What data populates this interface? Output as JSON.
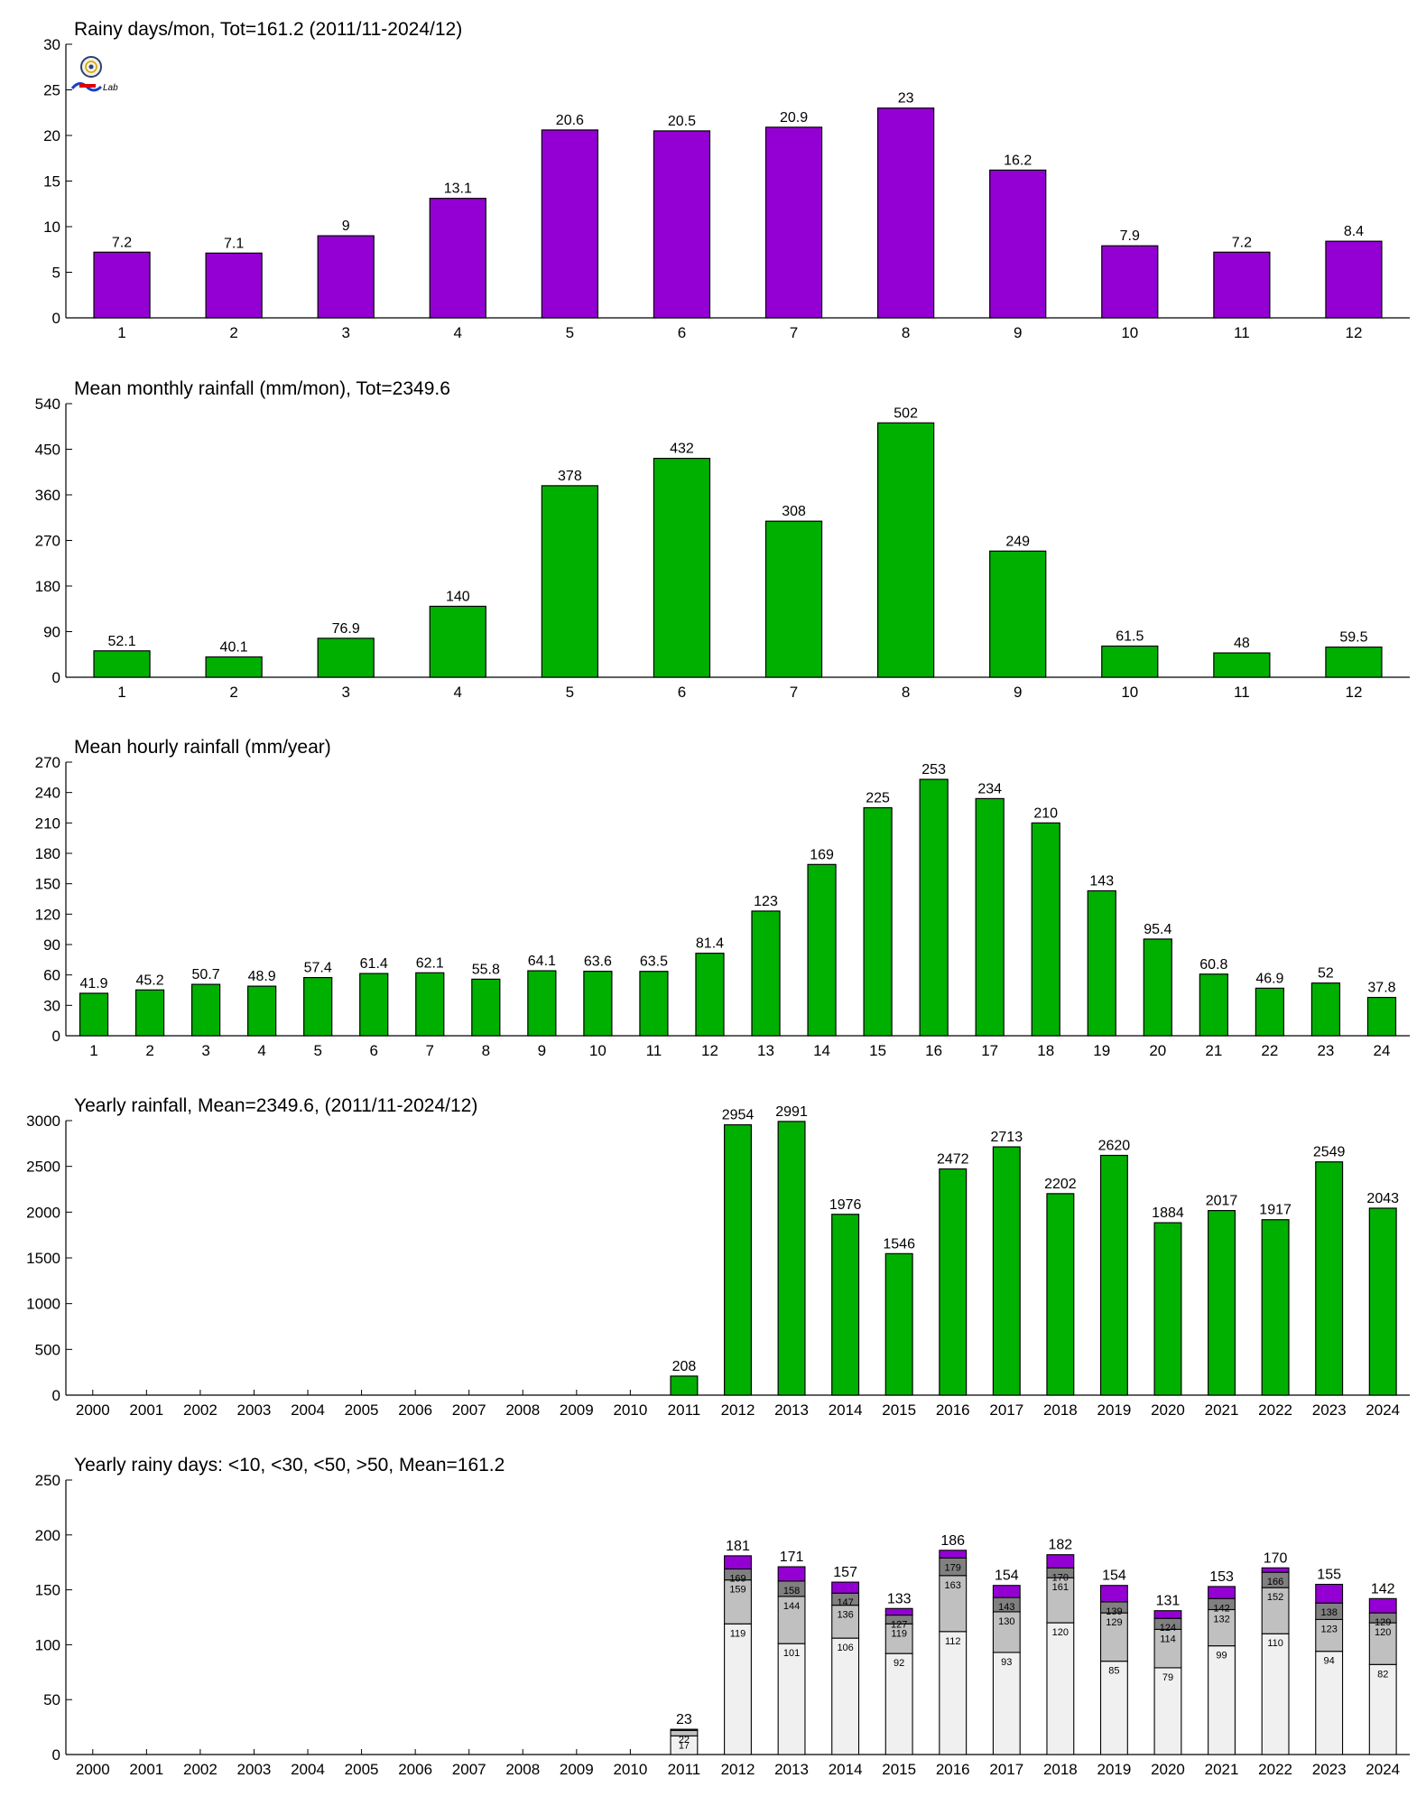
{
  "logo": {
    "text": "Lab"
  },
  "chart_data": [
    {
      "type": "bar",
      "title": "Rainy days/mon, Tot=161.2 (2011/11-2024/12)",
      "color": "#9400D3",
      "categories": [
        "1",
        "2",
        "3",
        "4",
        "5",
        "6",
        "7",
        "8",
        "9",
        "10",
        "11",
        "12"
      ],
      "values": [
        7.2,
        7.1,
        9,
        13.1,
        20.6,
        20.5,
        20.9,
        23,
        16.2,
        7.9,
        7.2,
        8.4
      ],
      "ylim": [
        0,
        30
      ],
      "yticks": [
        0,
        5,
        10,
        15,
        20,
        25,
        30
      ]
    },
    {
      "type": "bar",
      "title": "Mean monthly rainfall (mm/mon), Tot=2349.6",
      "color": "#00B000",
      "categories": [
        "1",
        "2",
        "3",
        "4",
        "5",
        "6",
        "7",
        "8",
        "9",
        "10",
        "11",
        "12"
      ],
      "values": [
        52.1,
        40.1,
        76.9,
        140,
        378,
        432,
        308,
        502,
        249,
        61.5,
        48,
        59.5
      ],
      "ylim": [
        0,
        540
      ],
      "yticks": [
        0,
        90,
        180,
        270,
        360,
        450,
        540
      ]
    },
    {
      "type": "bar",
      "title": "Mean hourly rainfall (mm/year)",
      "color": "#00B000",
      "categories": [
        "1",
        "2",
        "3",
        "4",
        "5",
        "6",
        "7",
        "8",
        "9",
        "10",
        "11",
        "12",
        "13",
        "14",
        "15",
        "16",
        "17",
        "18",
        "19",
        "20",
        "21",
        "22",
        "23",
        "24"
      ],
      "values": [
        41.9,
        45.2,
        50.7,
        48.9,
        57.4,
        61.4,
        62.1,
        55.8,
        64.1,
        63.6,
        63.5,
        81.4,
        123,
        169,
        225,
        253,
        234,
        210,
        143,
        95.4,
        60.8,
        46.9,
        52,
        37.8
      ],
      "ylim": [
        0,
        270
      ],
      "yticks": [
        0,
        30,
        60,
        90,
        120,
        150,
        180,
        210,
        240,
        270
      ]
    },
    {
      "type": "bar",
      "title": "Yearly rainfall, Mean=2349.6, (2011/11-2024/12)",
      "color": "#00B000",
      "categories": [
        "2000",
        "2001",
        "2002",
        "2003",
        "2004",
        "2005",
        "2006",
        "2007",
        "2008",
        "2009",
        "2010",
        "2011",
        "2012",
        "2013",
        "2014",
        "2015",
        "2016",
        "2017",
        "2018",
        "2019",
        "2020",
        "2021",
        "2022",
        "2023",
        "2024"
      ],
      "values": [
        null,
        null,
        null,
        null,
        null,
        null,
        null,
        null,
        null,
        null,
        null,
        208,
        2954,
        2991,
        1976,
        1546,
        2472,
        2713,
        2202,
        2620,
        1884,
        2017,
        1917,
        2549,
        2043
      ],
      "ylim": [
        0,
        3000
      ],
      "yticks": [
        0,
        500,
        1000,
        1500,
        2000,
        2500,
        3000
      ]
    },
    {
      "type": "bar",
      "stacked": true,
      "title": "Yearly rainy days: <10, <30, <50, >50, Mean=161.2",
      "colors": [
        "#F0F0F0",
        "#C0C0C0",
        "#808080",
        "#9400D3"
      ],
      "categories": [
        "2000",
        "2001",
        "2002",
        "2003",
        "2004",
        "2005",
        "2006",
        "2007",
        "2008",
        "2009",
        "2010",
        "2011",
        "2012",
        "2013",
        "2014",
        "2015",
        "2016",
        "2017",
        "2018",
        "2019",
        "2020",
        "2021",
        "2022",
        "2023",
        "2024"
      ],
      "totals": [
        null,
        null,
        null,
        null,
        null,
        null,
        null,
        null,
        null,
        null,
        null,
        23,
        181,
        171,
        157,
        133,
        186,
        154,
        182,
        154,
        131,
        153,
        170,
        155,
        142
      ],
      "cumulative_labels": [
        [
          null,
          null,
          null
        ],
        [
          null,
          null,
          null
        ],
        [
          null,
          null,
          null
        ],
        [
          null,
          null,
          null
        ],
        [
          null,
          null,
          null
        ],
        [
          null,
          null,
          null
        ],
        [
          null,
          null,
          null
        ],
        [
          null,
          null,
          null
        ],
        [
          null,
          null,
          null
        ],
        [
          null,
          null,
          null
        ],
        [
          null,
          null,
          null
        ],
        [
          17,
          22,
          null
        ],
        [
          119,
          159,
          169
        ],
        [
          101,
          144,
          158
        ],
        [
          106,
          136,
          147
        ],
        [
          92,
          119,
          127
        ],
        [
          112,
          163,
          179
        ],
        [
          93,
          130,
          143
        ],
        [
          120,
          161,
          170
        ],
        [
          85,
          129,
          139
        ],
        [
          79,
          114,
          124
        ],
        [
          99,
          132,
          142
        ],
        [
          110,
          152,
          166
        ],
        [
          94,
          123,
          138
        ],
        [
          82,
          120,
          129
        ]
      ],
      "ylim": [
        0,
        250
      ],
      "yticks": [
        0,
        50,
        100,
        150,
        200,
        250
      ]
    }
  ]
}
